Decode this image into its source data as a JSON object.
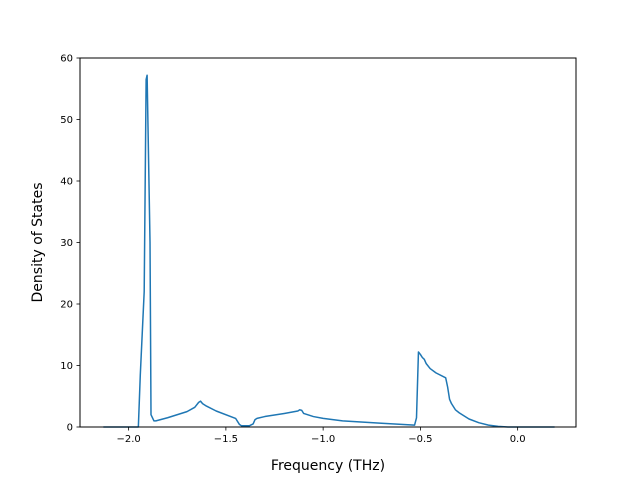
{
  "chart_data": {
    "type": "line",
    "title": "",
    "xlabel": "Frequency (THz)",
    "ylabel": "Density of States",
    "xlim": [
      -2.25,
      0.3
    ],
    "ylim": [
      0,
      60
    ],
    "x_ticks": [
      -2.0,
      -1.5,
      -1.0,
      -0.5,
      0.0
    ],
    "x_tick_labels": [
      "−2.0",
      "−1.5",
      "−1.0",
      "−0.5",
      "0.0"
    ],
    "y_ticks": [
      0,
      10,
      20,
      30,
      40,
      50,
      60
    ],
    "y_tick_labels": [
      "0",
      "10",
      "20",
      "30",
      "40",
      "50",
      "60"
    ],
    "grid": false,
    "legend": "none",
    "series": [
      {
        "color": "#1f77b4",
        "x": [
          -2.13,
          -1.95,
          -1.94,
          -1.92,
          -1.91,
          -1.905,
          -1.89,
          -1.885,
          -1.87,
          -1.86,
          -1.8,
          -1.7,
          -1.66,
          -1.64,
          -1.63,
          -1.62,
          -1.6,
          -1.55,
          -1.45,
          -1.43,
          -1.42,
          -1.38,
          -1.36,
          -1.35,
          -1.34,
          -1.3,
          -1.2,
          -1.13,
          -1.12,
          -1.11,
          -1.1,
          -1.05,
          -1.0,
          -0.9,
          -0.7,
          -0.53,
          -0.52,
          -0.51,
          -0.5,
          -0.49,
          -0.48,
          -0.47,
          -0.45,
          -0.42,
          -0.37,
          -0.36,
          -0.35,
          -0.34,
          -0.32,
          -0.3,
          -0.25,
          -0.2,
          -0.15,
          -0.1,
          -0.05,
          0.0,
          0.1,
          0.19
        ],
        "y": [
          0,
          0,
          8.5,
          22,
          56.5,
          57.2,
          30,
          2,
          1.0,
          1.0,
          1.5,
          2.5,
          3.2,
          4.0,
          4.2,
          3.8,
          3.4,
          2.6,
          1.4,
          0.4,
          0.2,
          0.2,
          0.5,
          1.2,
          1.4,
          1.7,
          2.2,
          2.6,
          2.8,
          2.7,
          2.2,
          1.7,
          1.4,
          1.0,
          0.6,
          0.3,
          1.5,
          12.2,
          11.8,
          11.3,
          11.0,
          10.3,
          9.5,
          8.8,
          8.0,
          6.5,
          4.5,
          3.8,
          2.8,
          2.3,
          1.3,
          0.7,
          0.3,
          0.1,
          0,
          0,
          0,
          0
        ]
      }
    ]
  }
}
